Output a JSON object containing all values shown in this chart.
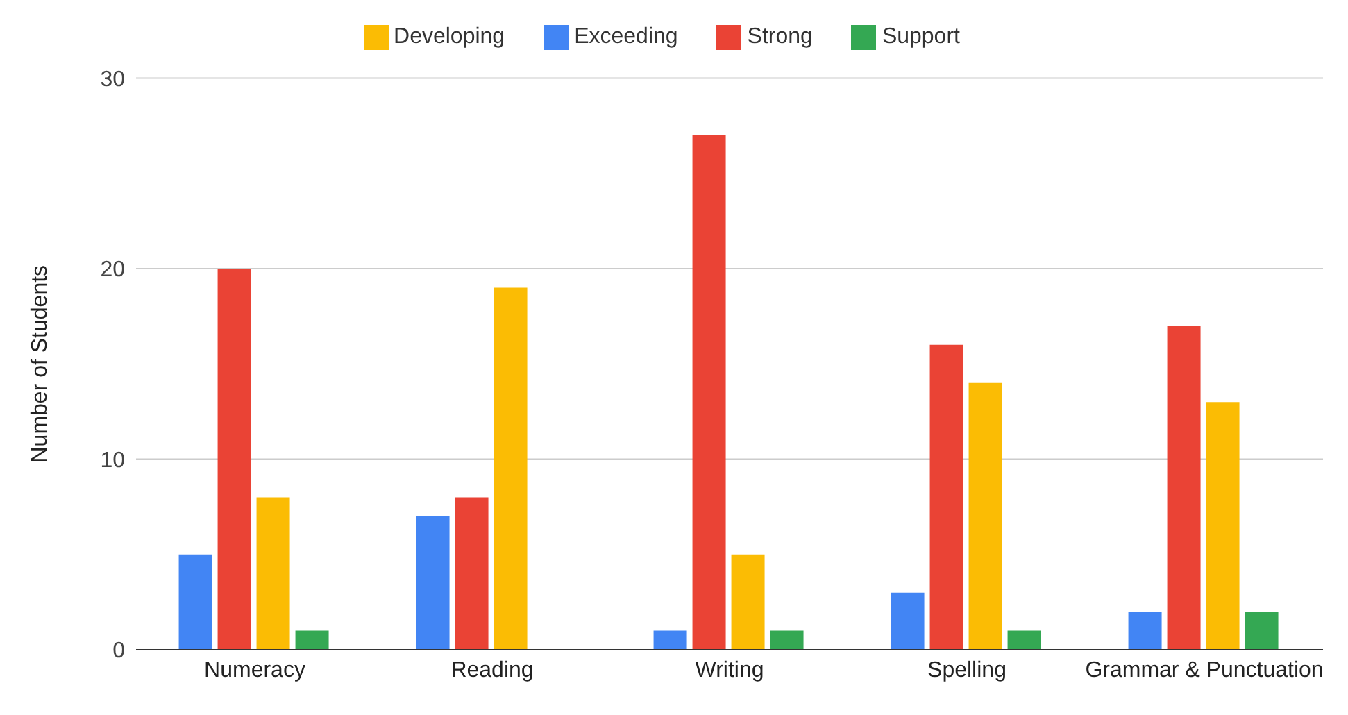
{
  "chart_data": {
    "type": "bar",
    "ylabel": "Number of Students",
    "categories": [
      "Numeracy",
      "Reading",
      "Writing",
      "Spelling",
      "Grammar & Punctuation"
    ],
    "series": [
      {
        "name": "Exceeding",
        "color": "#4285f4",
        "values": [
          5,
          7,
          1,
          3,
          2
        ]
      },
      {
        "name": "Strong",
        "color": "#ea4335",
        "values": [
          20,
          8,
          27,
          16,
          17
        ]
      },
      {
        "name": "Developing",
        "color": "#fbbc04",
        "values": [
          8,
          19,
          5,
          14,
          13
        ]
      },
      {
        "name": "Support",
        "color": "#34a853",
        "values": [
          1,
          0,
          1,
          1,
          2
        ]
      }
    ],
    "ylim": [
      0,
      30
    ],
    "yticks": [
      0,
      10,
      20,
      30
    ],
    "grid": "y",
    "legend": "top"
  }
}
